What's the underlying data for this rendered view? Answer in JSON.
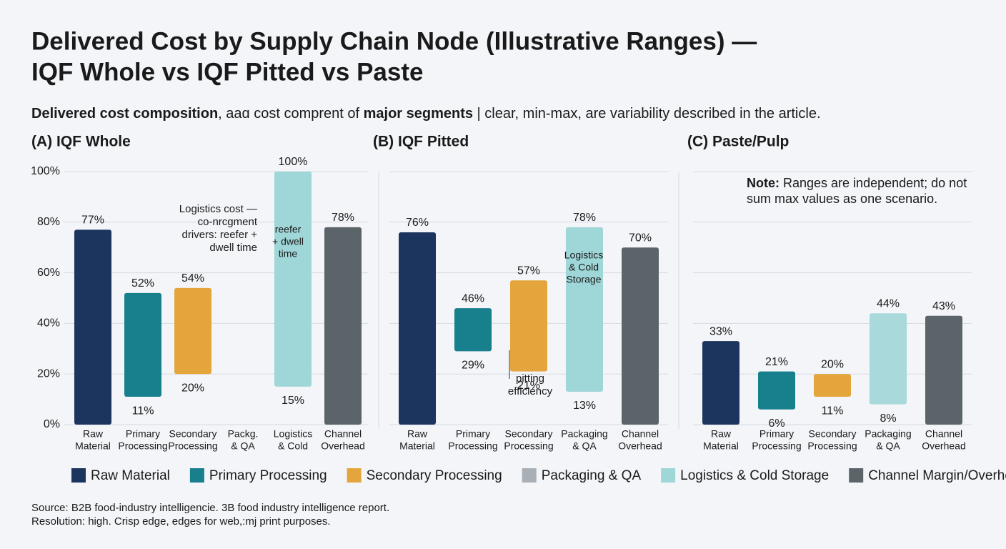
{
  "title": [
    "Delivered Cost by Supply Chain Node (Illustrative Ranges) —",
    "IQF Whole vs IQF Pitted vs Paste"
  ],
  "subtitle": [
    "Delivered cost composition",
    ", aaɑ cost comprent of ",
    "major segments",
    " | clear, min-max, are variability described in the article."
  ],
  "legend": [
    {
      "name": "Raw Material",
      "color": "#1c355e"
    },
    {
      "name": "Primary Processing",
      "color": "#17808c"
    },
    {
      "name": "Secondary Processing",
      "color": "#e3a53c"
    },
    {
      "name": "Packaging & QA",
      "color": "#a9afb6"
    },
    {
      "name": "Logistics & Cold Storage",
      "color": "#9fd6d7"
    },
    {
      "name": "Channel Margin/Overhead",
      "color": "#5b6469"
    }
  ],
  "source": [
    "Source: B2B food-industry intelligencie. 3B food industry intelligence report.",
    "Resolution: high.  Crisp edge, edges for web,:mj print purposes."
  ],
  "chart_data": [
    {
      "type": "range-bar",
      "title": "(A) IQF Whole",
      "categories": [
        [
          "Raw",
          "Material"
        ],
        [
          "Primary",
          "Processing"
        ],
        [
          "Secondary",
          "Processing"
        ],
        [
          "Packg.",
          "& QA"
        ],
        [
          "Logistics",
          "& Cold"
        ],
        [
          "Channel",
          "Overhead"
        ]
      ],
      "colors": [
        "#1c355e",
        "#17808c",
        "#e3a53c",
        null,
        "#9fd6d7",
        "#5b6469"
      ],
      "low": [
        0,
        11,
        20,
        null,
        15,
        0
      ],
      "low_labels": [
        null,
        "11%",
        "20%",
        null,
        "15%",
        null
      ],
      "high": [
        77,
        52,
        54,
        null,
        100,
        78
      ],
      "high_labels": [
        "77%",
        "52%",
        "54%",
        null,
        "100%",
        "78%"
      ],
      "ylim": [
        0,
        100
      ],
      "yticks": [
        {
          "value": 0,
          "label": "0%"
        },
        {
          "value": 20,
          "label": "20%"
        },
        {
          "value": 40,
          "label": "40%"
        },
        {
          "value": 60,
          "label": "60%"
        },
        {
          "value": 80,
          "label": "80%"
        },
        {
          "value": 100,
          "label": "100%"
        }
      ],
      "grid": true,
      "annotations": [
        [
          "Logistics cost —",
          "co-nrcgment",
          "drivers: reefer +",
          "dwell time"
        ],
        [
          "reefer",
          "+ dwell",
          "time"
        ]
      ]
    },
    {
      "type": "range-bar",
      "title": "(B) IQF Pitted",
      "categories": [
        [
          "Raw",
          "Material"
        ],
        [
          "Primary",
          "Processing"
        ],
        [
          "Secondary",
          "Processing"
        ],
        [
          "Packaging",
          "& QA"
        ],
        [
          "Channel",
          "Overhead"
        ]
      ],
      "colors": [
        "#1c355e",
        "#17808c",
        "#e3a53c",
        "#9fd6d7",
        "#5b6469"
      ],
      "low": [
        0,
        29,
        21,
        13,
        0
      ],
      "low_labels": [
        null,
        "29%",
        "21%",
        "13%",
        null
      ],
      "high": [
        76,
        46,
        57,
        78,
        70
      ],
      "high_labels": [
        "76%",
        "46%",
        "57%",
        "78%",
        "70%"
      ],
      "annotations": [
        [
          "pitting",
          "efficiency"
        ],
        [
          "Logistics",
          "& Cold",
          "Storage"
        ]
      ]
    },
    {
      "type": "range-bar",
      "title": "(C) Paste/Pulp",
      "categories": [
        [
          "Raw",
          "Material"
        ],
        [
          "Primary",
          "Processing"
        ],
        [
          "Secondary",
          "Processing"
        ],
        [
          "Packaging",
          "& QA"
        ],
        [
          "Channel",
          "Overhead"
        ]
      ],
      "colors": [
        "#1c355e",
        "#17808c",
        "#e3a53c",
        "#a9d9da",
        "#5b6469"
      ],
      "low": [
        0,
        6,
        11,
        8,
        0
      ],
      "low_labels": [
        null,
        "6%",
        "11%",
        "8%",
        null
      ],
      "high": [
        33,
        21,
        20,
        44,
        43
      ],
      "high_labels": [
        "33%",
        "21%",
        "20%",
        "44%",
        "43%"
      ],
      "annotations": [
        [
          "Note:",
          " Ranges are independent; do not",
          "sum max values as one scenario."
        ]
      ]
    }
  ]
}
